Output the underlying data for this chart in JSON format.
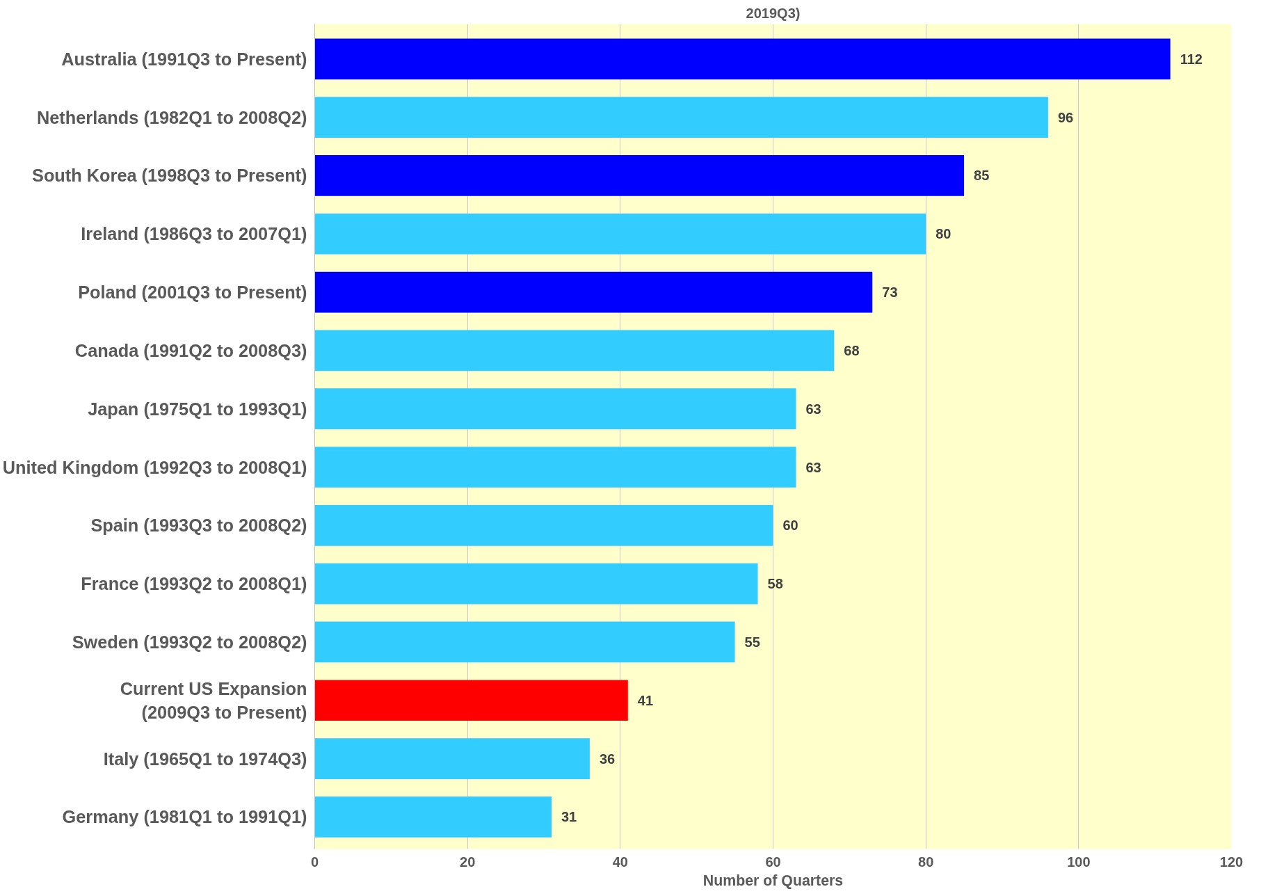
{
  "chart_data": {
    "type": "bar",
    "orientation": "horizontal",
    "title": "2019Q3)",
    "xlabel": "Number of Quarters",
    "categories": [
      "Australia (1991Q3 to Present)",
      "Netherlands (1982Q1 to 2008Q2)",
      "South Korea (1998Q3 to Present)",
      "Ireland (1986Q3 to 2007Q1)",
      "Poland (2001Q3 to Present)",
      "Canada (1991Q2 to 2008Q3)",
      "Japan (1975Q1 to 1993Q1)",
      "United Kingdom (1992Q3 to 2008Q1)",
      "Spain (1993Q3 to 2008Q2)",
      "France (1993Q2 to 2008Q1)",
      "Sweden (1993Q2 to 2008Q2)",
      "Current US Expansion (2009Q3 to Present)",
      "Italy (1965Q1 to 1974Q3)",
      "Germany (1981Q1 to 1991Q1)"
    ],
    "values": [
      112,
      96,
      85,
      80,
      73,
      68,
      63,
      63,
      60,
      58,
      55,
      41,
      36,
      31
    ],
    "colors": [
      "#0000ff",
      "#33ccff",
      "#0000ff",
      "#33ccff",
      "#0000ff",
      "#33ccff",
      "#33ccff",
      "#33ccff",
      "#33ccff",
      "#33ccff",
      "#33ccff",
      "#ff0000",
      "#33ccff",
      "#33ccff"
    ],
    "xlim": [
      0,
      120
    ],
    "xticks": [
      0,
      20,
      40,
      60,
      80,
      100,
      120
    ],
    "grid": "x",
    "data_labels": true
  }
}
